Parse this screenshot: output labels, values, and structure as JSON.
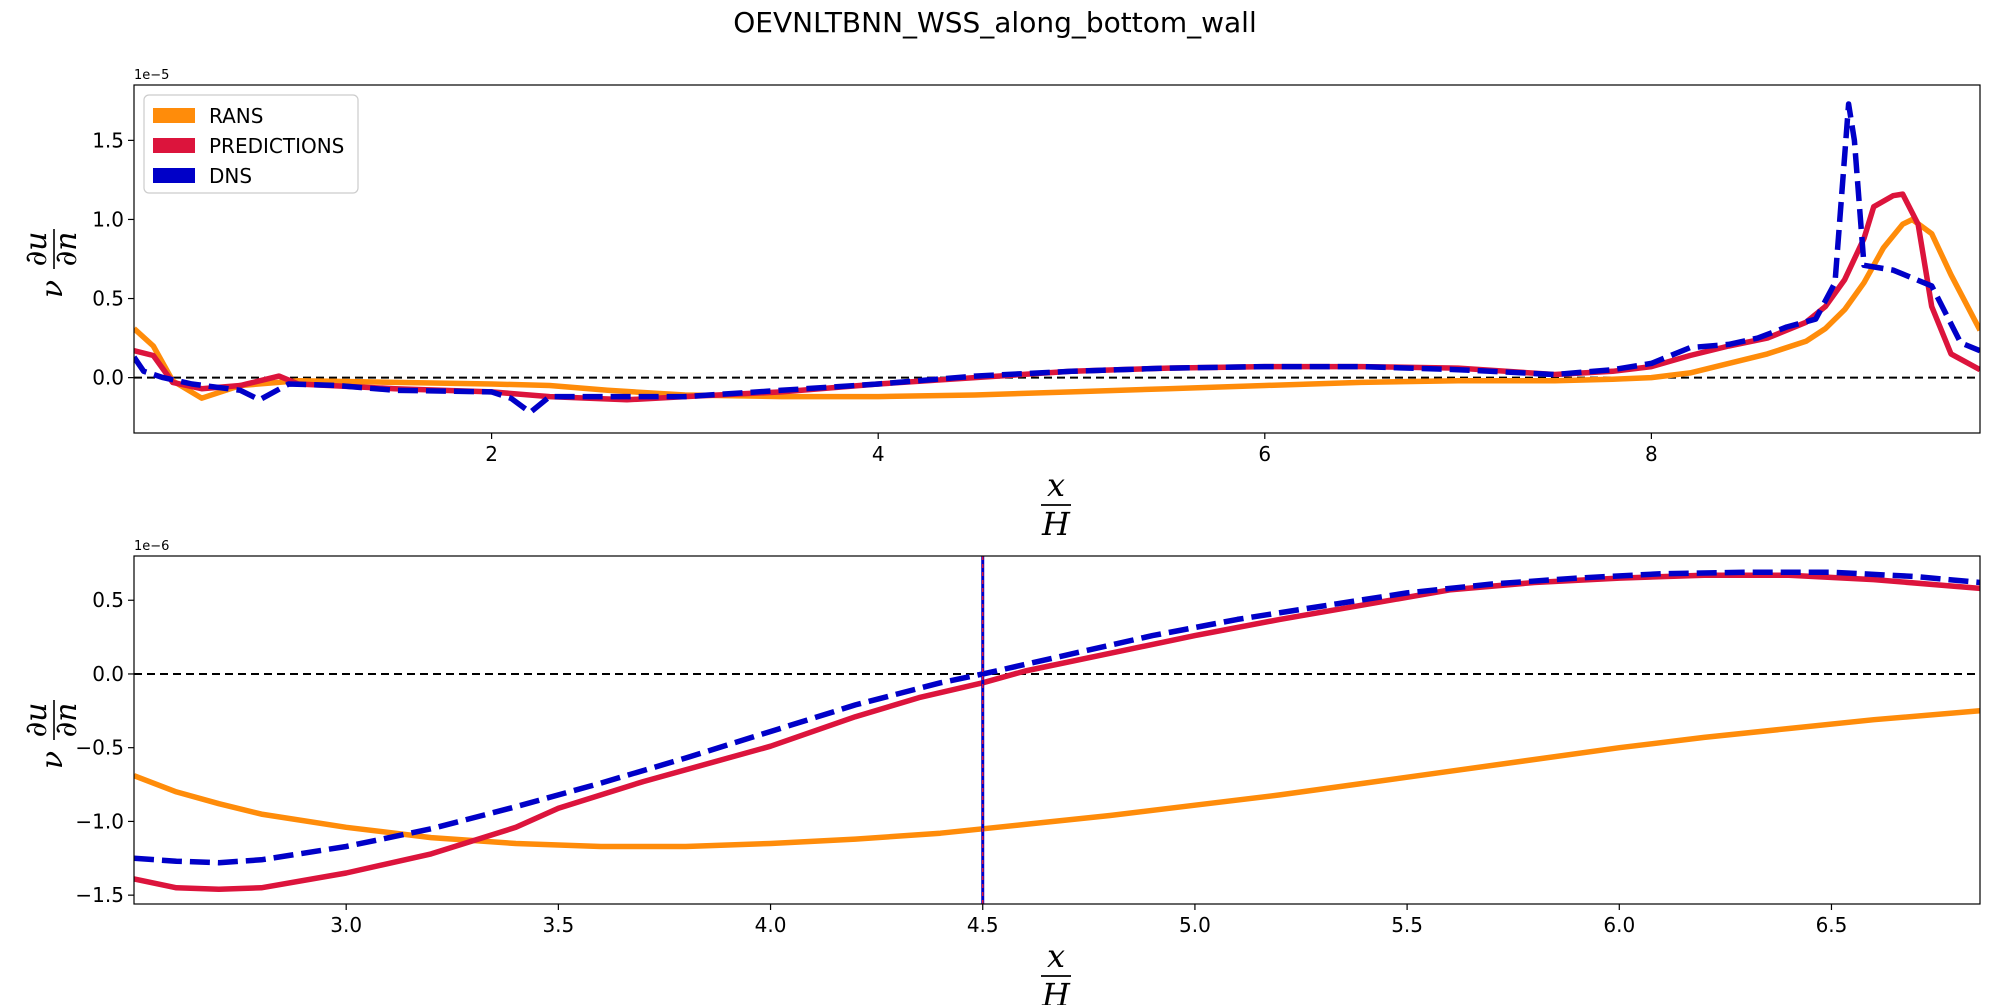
{
  "title": "OEVNLTBNN_WSS_along_bottom_wall",
  "colors": {
    "RANS": "#FF8C0A",
    "PREDICTIONS": "#DC143C",
    "DNS": "#0000C8",
    "zero_line": "#000000",
    "marker_line": "#0000C8"
  },
  "chart_data": [
    {
      "type": "line",
      "subplot": "top",
      "title": "",
      "offset_text": "1e−5",
      "ylabel": {
        "base": "ν",
        "numerator": "∂u",
        "denominator": "∂n"
      },
      "xlabel": {
        "numerator": "x",
        "denominator": "H"
      },
      "xlim": [
        0.15,
        9.7
      ],
      "ylim": [
        -0.35,
        1.85
      ],
      "xticks": [
        2,
        4,
        6,
        8
      ],
      "xtick_labels": [
        "2",
        "4",
        "6",
        "8"
      ],
      "yticks": [
        0.0,
        0.5,
        1.0,
        1.5
      ],
      "ytick_labels": [
        "0.0",
        "0.5",
        "1.0",
        "1.5"
      ],
      "hline": 0.0,
      "legend": {
        "position": "top-left",
        "entries": [
          "RANS",
          "PREDICTIONS",
          "DNS"
        ]
      },
      "series": [
        {
          "name": "RANS",
          "style": "solid",
          "x": [
            0.15,
            0.25,
            0.35,
            0.5,
            0.7,
            1.0,
            1.5,
            2.0,
            2.3,
            2.6,
            3.0,
            3.5,
            4.0,
            4.5,
            5.0,
            5.5,
            6.0,
            6.5,
            7.0,
            7.5,
            7.8,
            8.0,
            8.2,
            8.4,
            8.6,
            8.8,
            8.9,
            9.0,
            9.1,
            9.2,
            9.3,
            9.35,
            9.45,
            9.55,
            9.7
          ],
          "y": [
            0.31,
            0.2,
            -0.02,
            -0.13,
            -0.05,
            -0.02,
            -0.03,
            -0.04,
            -0.05,
            -0.08,
            -0.11,
            -0.12,
            -0.12,
            -0.11,
            -0.09,
            -0.07,
            -0.05,
            -0.03,
            -0.02,
            -0.02,
            -0.01,
            0.0,
            0.03,
            0.09,
            0.15,
            0.23,
            0.31,
            0.43,
            0.6,
            0.82,
            0.97,
            1.0,
            0.91,
            0.65,
            0.3
          ]
        },
        {
          "name": "PREDICTIONS",
          "style": "solid",
          "x": [
            0.15,
            0.25,
            0.35,
            0.5,
            0.7,
            0.9,
            1.0,
            1.5,
            2.0,
            2.3,
            2.7,
            3.0,
            3.5,
            4.0,
            4.5,
            5.0,
            5.5,
            6.0,
            6.5,
            7.0,
            7.5,
            7.8,
            8.0,
            8.2,
            8.4,
            8.6,
            8.8,
            8.9,
            9.0,
            9.1,
            9.15,
            9.25,
            9.3,
            9.38,
            9.45,
            9.55,
            9.7
          ],
          "y": [
            0.17,
            0.14,
            -0.03,
            -0.07,
            -0.05,
            0.01,
            -0.04,
            -0.07,
            -0.09,
            -0.12,
            -0.14,
            -0.12,
            -0.09,
            -0.04,
            0.0,
            0.04,
            0.06,
            0.07,
            0.07,
            0.06,
            0.02,
            0.04,
            0.07,
            0.14,
            0.2,
            0.25,
            0.35,
            0.45,
            0.62,
            0.88,
            1.08,
            1.15,
            1.16,
            0.97,
            0.45,
            0.15,
            0.05
          ]
        },
        {
          "name": "DNS",
          "style": "dashed",
          "x": [
            0.15,
            0.2,
            0.3,
            0.45,
            0.7,
            0.8,
            0.95,
            1.2,
            1.5,
            2.0,
            2.1,
            2.2,
            2.3,
            2.5,
            3.0,
            3.5,
            4.0,
            4.5,
            5.0,
            5.5,
            6.0,
            6.5,
            7.0,
            7.5,
            7.8,
            8.0,
            8.2,
            8.4,
            8.55,
            8.7,
            8.85,
            8.95,
            9.02,
            9.05,
            9.1,
            9.25,
            9.45,
            9.6,
            9.7
          ],
          "y": [
            0.13,
            0.04,
            0.0,
            -0.04,
            -0.08,
            -0.14,
            -0.04,
            -0.05,
            -0.08,
            -0.09,
            -0.13,
            -0.22,
            -0.12,
            -0.12,
            -0.12,
            -0.08,
            -0.04,
            0.01,
            0.04,
            0.06,
            0.07,
            0.07,
            0.05,
            0.02,
            0.05,
            0.09,
            0.19,
            0.21,
            0.25,
            0.32,
            0.37,
            0.6,
            1.73,
            1.5,
            0.71,
            0.68,
            0.58,
            0.22,
            0.17
          ]
        }
      ]
    },
    {
      "type": "line",
      "subplot": "bottom",
      "title": "",
      "offset_text": "1e−6",
      "ylabel": {
        "base": "ν",
        "numerator": "∂u",
        "denominator": "∂n"
      },
      "xlabel": {
        "numerator": "x",
        "denominator": "H"
      },
      "xlim": [
        2.5,
        6.85
      ],
      "ylim": [
        -1.56,
        0.8
      ],
      "xticks": [
        3.0,
        3.5,
        4.0,
        4.5,
        5.0,
        5.5,
        6.0,
        6.5
      ],
      "xtick_labels": [
        "3.0",
        "3.5",
        "4.0",
        "4.5",
        "5.0",
        "5.5",
        "6.0",
        "6.5"
      ],
      "yticks": [
        -1.5,
        -1.0,
        -0.5,
        0.0,
        0.5
      ],
      "ytick_labels": [
        "−1.5",
        "−1.0",
        "−0.5",
        "0.0",
        "0.5"
      ],
      "hline": 0.0,
      "vline": 4.5,
      "series": [
        {
          "name": "RANS",
          "style": "solid",
          "x": [
            2.5,
            2.6,
            2.7,
            2.8,
            3.0,
            3.2,
            3.4,
            3.6,
            3.8,
            4.0,
            4.2,
            4.4,
            4.5,
            4.6,
            4.8,
            5.0,
            5.2,
            5.4,
            5.6,
            5.8,
            6.0,
            6.2,
            6.4,
            6.6,
            6.85
          ],
          "y": [
            -0.69,
            -0.8,
            -0.88,
            -0.95,
            -1.04,
            -1.11,
            -1.15,
            -1.17,
            -1.17,
            -1.15,
            -1.12,
            -1.08,
            -1.05,
            -1.02,
            -0.96,
            -0.89,
            -0.82,
            -0.74,
            -0.66,
            -0.58,
            -0.5,
            -0.43,
            -0.37,
            -0.31,
            -0.25
          ]
        },
        {
          "name": "PREDICTIONS",
          "style": "solid",
          "x": [
            2.5,
            2.6,
            2.7,
            2.8,
            3.0,
            3.2,
            3.4,
            3.5,
            3.7,
            3.9,
            4.0,
            4.2,
            4.35,
            4.5,
            4.6,
            4.8,
            5.0,
            5.2,
            5.4,
            5.6,
            5.8,
            6.0,
            6.2,
            6.4,
            6.6,
            6.85
          ],
          "y": [
            -1.39,
            -1.45,
            -1.46,
            -1.45,
            -1.35,
            -1.22,
            -1.04,
            -0.91,
            -0.73,
            -0.57,
            -0.49,
            -0.29,
            -0.16,
            -0.06,
            0.02,
            0.14,
            0.26,
            0.37,
            0.47,
            0.57,
            0.62,
            0.65,
            0.67,
            0.67,
            0.64,
            0.58
          ]
        },
        {
          "name": "DNS",
          "style": "dashed",
          "x": [
            2.5,
            2.6,
            2.7,
            2.8,
            3.0,
            3.2,
            3.4,
            3.6,
            3.8,
            4.0,
            4.2,
            4.4,
            4.5,
            4.7,
            4.9,
            5.1,
            5.3,
            5.5,
            5.7,
            5.9,
            6.1,
            6.3,
            6.5,
            6.7,
            6.85
          ],
          "y": [
            -1.25,
            -1.27,
            -1.28,
            -1.26,
            -1.17,
            -1.05,
            -0.9,
            -0.74,
            -0.57,
            -0.39,
            -0.21,
            -0.06,
            0.0,
            0.13,
            0.26,
            0.37,
            0.46,
            0.55,
            0.61,
            0.65,
            0.68,
            0.69,
            0.69,
            0.66,
            0.62
          ]
        }
      ]
    }
  ]
}
